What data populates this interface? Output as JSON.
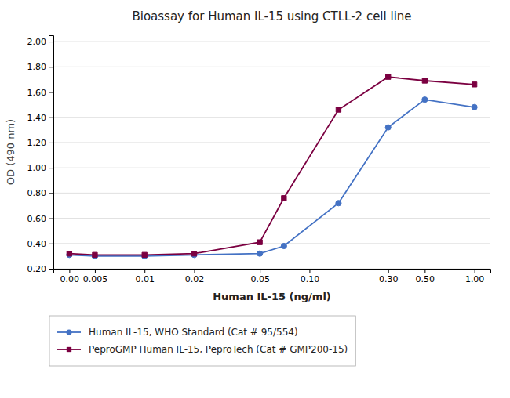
{
  "chart_data": {
    "type": "line",
    "title": "Bioassay for Human IL-15 using CTLL-2 cell line",
    "xlabel": "Human IL-15 (ng/ml)",
    "ylabel": "OD (490 nm)",
    "log": "x",
    "grid": "y",
    "legend": "bottom",
    "x": [
      0.0035,
      0.005,
      0.01,
      0.02,
      0.05,
      0.07,
      0.15,
      0.3,
      0.5,
      1.0
    ],
    "series": [
      {
        "name": "Human IL-15, WHO Standard (Cat # 95/554)",
        "color": "#4472C4",
        "marker": "circle",
        "values": [
          0.31,
          0.3,
          0.3,
          0.31,
          0.32,
          0.38,
          0.72,
          1.32,
          1.54,
          1.48
        ]
      },
      {
        "name": "PeproGMP Human IL-15, PeproTech (Cat # GMP200-15)",
        "color": "#7B0041",
        "marker": "square",
        "values": [
          0.32,
          0.31,
          0.31,
          0.32,
          0.41,
          0.76,
          1.46,
          1.72,
          1.69,
          1.66
        ]
      }
    ],
    "xlim": [
      0.0028,
      1.25
    ],
    "xticks": [
      {
        "value": 0.0035,
        "label": "0.00"
      },
      0.005,
      0.01,
      0.02,
      0.05,
      {
        "value": 0.1,
        "label": "0.10"
      },
      {
        "value": 0.3,
        "label": "0.30"
      },
      {
        "value": 0.5,
        "label": "0.50"
      },
      {
        "value": 1.0,
        "label": "1.00"
      }
    ],
    "ylim": [
      0.2,
      2.05
    ],
    "yticks": [
      {
        "value": 0.2,
        "label": "0.20"
      },
      {
        "value": 0.4,
        "label": "0.40"
      },
      {
        "value": 0.6,
        "label": "0.60"
      },
      {
        "value": 0.8,
        "label": "0.80"
      },
      {
        "value": 1.0,
        "label": "1.00"
      },
      {
        "value": 1.2,
        "label": "1.20"
      },
      {
        "value": 1.4,
        "label": "1.40"
      },
      {
        "value": 1.6,
        "label": "1.60"
      },
      {
        "value": 1.8,
        "label": "1.80"
      },
      {
        "value": 2.0,
        "label": "2.00"
      }
    ]
  }
}
